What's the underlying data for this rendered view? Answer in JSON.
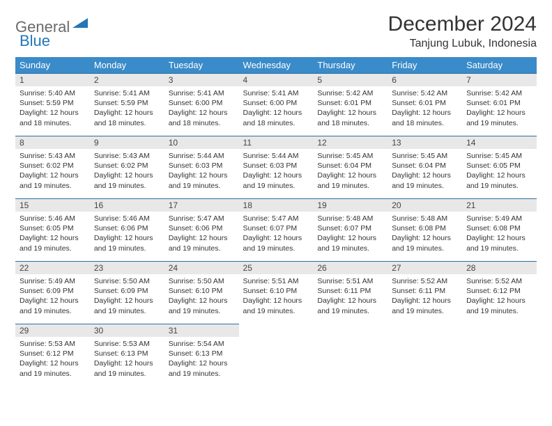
{
  "logo": {
    "general": "General",
    "blue": "Blue"
  },
  "title": "December 2024",
  "location": "Tanjung Lubuk, Indonesia",
  "colors": {
    "header_bg": "#3a8bc9",
    "header_text": "#ffffff",
    "daynum_bg": "#e8e8e8",
    "cell_border": "#2a6fa3",
    "logo_gray": "#6a6a6a",
    "logo_blue": "#2376b8",
    "body_bg": "#ffffff",
    "text": "#333333"
  },
  "font": {
    "family": "Arial",
    "title_size": 30,
    "location_size": 16,
    "dayhead_size": 13,
    "daynum_size": 12,
    "body_size": 10.5
  },
  "days_of_week": [
    "Sunday",
    "Monday",
    "Tuesday",
    "Wednesday",
    "Thursday",
    "Friday",
    "Saturday"
  ],
  "weeks": [
    [
      {
        "n": "1",
        "sr": "Sunrise: 5:40 AM",
        "ss": "Sunset: 5:59 PM",
        "dl": "Daylight: 12 hours and 18 minutes."
      },
      {
        "n": "2",
        "sr": "Sunrise: 5:41 AM",
        "ss": "Sunset: 5:59 PM",
        "dl": "Daylight: 12 hours and 18 minutes."
      },
      {
        "n": "3",
        "sr": "Sunrise: 5:41 AM",
        "ss": "Sunset: 6:00 PM",
        "dl": "Daylight: 12 hours and 18 minutes."
      },
      {
        "n": "4",
        "sr": "Sunrise: 5:41 AM",
        "ss": "Sunset: 6:00 PM",
        "dl": "Daylight: 12 hours and 18 minutes."
      },
      {
        "n": "5",
        "sr": "Sunrise: 5:42 AM",
        "ss": "Sunset: 6:01 PM",
        "dl": "Daylight: 12 hours and 18 minutes."
      },
      {
        "n": "6",
        "sr": "Sunrise: 5:42 AM",
        "ss": "Sunset: 6:01 PM",
        "dl": "Daylight: 12 hours and 18 minutes."
      },
      {
        "n": "7",
        "sr": "Sunrise: 5:42 AM",
        "ss": "Sunset: 6:01 PM",
        "dl": "Daylight: 12 hours and 19 minutes."
      }
    ],
    [
      {
        "n": "8",
        "sr": "Sunrise: 5:43 AM",
        "ss": "Sunset: 6:02 PM",
        "dl": "Daylight: 12 hours and 19 minutes."
      },
      {
        "n": "9",
        "sr": "Sunrise: 5:43 AM",
        "ss": "Sunset: 6:02 PM",
        "dl": "Daylight: 12 hours and 19 minutes."
      },
      {
        "n": "10",
        "sr": "Sunrise: 5:44 AM",
        "ss": "Sunset: 6:03 PM",
        "dl": "Daylight: 12 hours and 19 minutes."
      },
      {
        "n": "11",
        "sr": "Sunrise: 5:44 AM",
        "ss": "Sunset: 6:03 PM",
        "dl": "Daylight: 12 hours and 19 minutes."
      },
      {
        "n": "12",
        "sr": "Sunrise: 5:45 AM",
        "ss": "Sunset: 6:04 PM",
        "dl": "Daylight: 12 hours and 19 minutes."
      },
      {
        "n": "13",
        "sr": "Sunrise: 5:45 AM",
        "ss": "Sunset: 6:04 PM",
        "dl": "Daylight: 12 hours and 19 minutes."
      },
      {
        "n": "14",
        "sr": "Sunrise: 5:45 AM",
        "ss": "Sunset: 6:05 PM",
        "dl": "Daylight: 12 hours and 19 minutes."
      }
    ],
    [
      {
        "n": "15",
        "sr": "Sunrise: 5:46 AM",
        "ss": "Sunset: 6:05 PM",
        "dl": "Daylight: 12 hours and 19 minutes."
      },
      {
        "n": "16",
        "sr": "Sunrise: 5:46 AM",
        "ss": "Sunset: 6:06 PM",
        "dl": "Daylight: 12 hours and 19 minutes."
      },
      {
        "n": "17",
        "sr": "Sunrise: 5:47 AM",
        "ss": "Sunset: 6:06 PM",
        "dl": "Daylight: 12 hours and 19 minutes."
      },
      {
        "n": "18",
        "sr": "Sunrise: 5:47 AM",
        "ss": "Sunset: 6:07 PM",
        "dl": "Daylight: 12 hours and 19 minutes."
      },
      {
        "n": "19",
        "sr": "Sunrise: 5:48 AM",
        "ss": "Sunset: 6:07 PM",
        "dl": "Daylight: 12 hours and 19 minutes."
      },
      {
        "n": "20",
        "sr": "Sunrise: 5:48 AM",
        "ss": "Sunset: 6:08 PM",
        "dl": "Daylight: 12 hours and 19 minutes."
      },
      {
        "n": "21",
        "sr": "Sunrise: 5:49 AM",
        "ss": "Sunset: 6:08 PM",
        "dl": "Daylight: 12 hours and 19 minutes."
      }
    ],
    [
      {
        "n": "22",
        "sr": "Sunrise: 5:49 AM",
        "ss": "Sunset: 6:09 PM",
        "dl": "Daylight: 12 hours and 19 minutes."
      },
      {
        "n": "23",
        "sr": "Sunrise: 5:50 AM",
        "ss": "Sunset: 6:09 PM",
        "dl": "Daylight: 12 hours and 19 minutes."
      },
      {
        "n": "24",
        "sr": "Sunrise: 5:50 AM",
        "ss": "Sunset: 6:10 PM",
        "dl": "Daylight: 12 hours and 19 minutes."
      },
      {
        "n": "25",
        "sr": "Sunrise: 5:51 AM",
        "ss": "Sunset: 6:10 PM",
        "dl": "Daylight: 12 hours and 19 minutes."
      },
      {
        "n": "26",
        "sr": "Sunrise: 5:51 AM",
        "ss": "Sunset: 6:11 PM",
        "dl": "Daylight: 12 hours and 19 minutes."
      },
      {
        "n": "27",
        "sr": "Sunrise: 5:52 AM",
        "ss": "Sunset: 6:11 PM",
        "dl": "Daylight: 12 hours and 19 minutes."
      },
      {
        "n": "28",
        "sr": "Sunrise: 5:52 AM",
        "ss": "Sunset: 6:12 PM",
        "dl": "Daylight: 12 hours and 19 minutes."
      }
    ],
    [
      {
        "n": "29",
        "sr": "Sunrise: 5:53 AM",
        "ss": "Sunset: 6:12 PM",
        "dl": "Daylight: 12 hours and 19 minutes."
      },
      {
        "n": "30",
        "sr": "Sunrise: 5:53 AM",
        "ss": "Sunset: 6:13 PM",
        "dl": "Daylight: 12 hours and 19 minutes."
      },
      {
        "n": "31",
        "sr": "Sunrise: 5:54 AM",
        "ss": "Sunset: 6:13 PM",
        "dl": "Daylight: 12 hours and 19 minutes."
      },
      null,
      null,
      null,
      null
    ]
  ]
}
